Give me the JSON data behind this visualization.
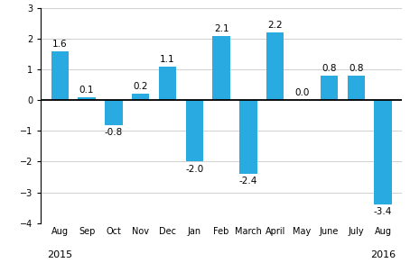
{
  "categories": [
    "Aug",
    "Sep",
    "Oct",
    "Nov",
    "Dec",
    "Jan",
    "Feb",
    "March",
    "April",
    "May",
    "June",
    "July",
    "Aug"
  ],
  "values": [
    1.6,
    0.1,
    -0.8,
    0.2,
    1.1,
    -2.0,
    2.1,
    -2.4,
    2.2,
    0.0,
    0.8,
    0.8,
    -3.4
  ],
  "bar_color": "#29abe2",
  "ylim": [
    -4,
    3
  ],
  "yticks": [
    -4,
    -3,
    -2,
    -1,
    0,
    1,
    2,
    3
  ],
  "label_fontsize": 7.0,
  "value_fontsize": 7.5,
  "year_fontsize": 8.0,
  "background_color": "#ffffff",
  "grid_color": "#d0d0d0",
  "year_2015": "2015",
  "year_2016": "2016",
  "year_2015_idx": 0,
  "year_2016_idx": 12
}
